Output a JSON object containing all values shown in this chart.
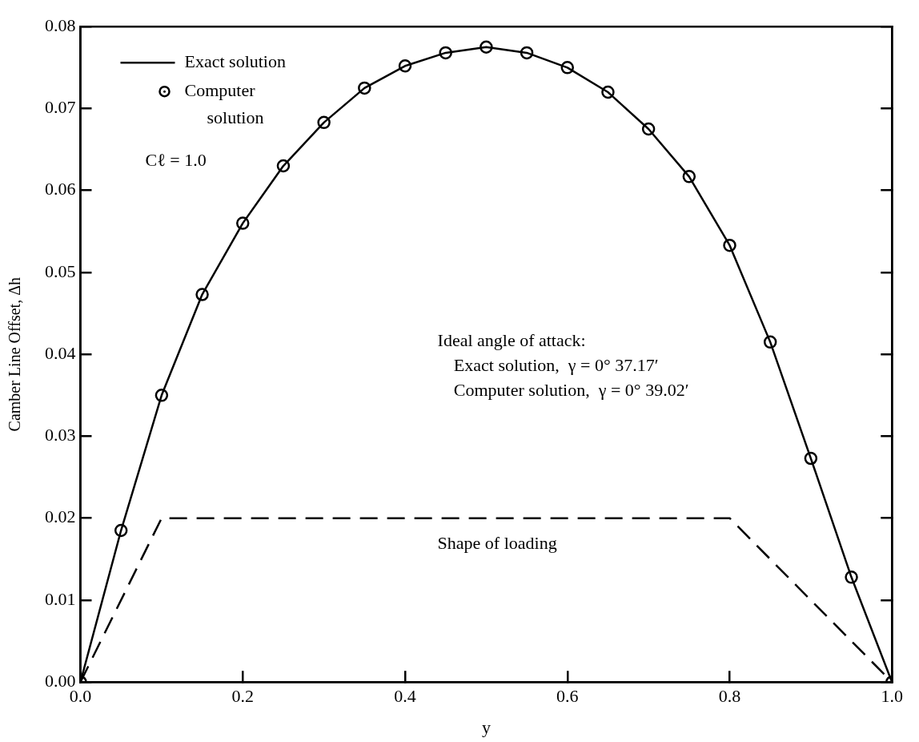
{
  "chart_data": {
    "type": "line",
    "xlabel": "y",
    "ylabel": "Camber Line Offset, Δh",
    "xlim": [
      0,
      1
    ],
    "ylim": [
      0,
      0.08
    ],
    "xticks": [
      {
        "value": 0,
        "label": "0.0"
      },
      {
        "value": 0.2,
        "label": "0.2"
      },
      {
        "value": 0.4,
        "label": "0.4"
      },
      {
        "value": 0.6,
        "label": "0.6"
      },
      {
        "value": 0.8,
        "label": "0.8"
      },
      {
        "value": 1,
        "label": "1.0"
      }
    ],
    "yticks": [
      {
        "value": 0,
        "label": "0.00"
      },
      {
        "value": 0.01,
        "label": "0.01"
      },
      {
        "value": 0.02,
        "label": "0.02"
      },
      {
        "value": 0.03,
        "label": "0.03"
      },
      {
        "value": 0.04,
        "label": "0.04"
      },
      {
        "value": 0.05,
        "label": "0.05"
      },
      {
        "value": 0.06,
        "label": "0.06"
      },
      {
        "value": 0.07,
        "label": "0.07"
      },
      {
        "value": 0.08,
        "label": "0.08"
      }
    ],
    "grid": false,
    "legend": "top left",
    "x": [
      0,
      0.05,
      0.1,
      0.15,
      0.2,
      0.25,
      0.3,
      0.35,
      0.4,
      0.45,
      0.5,
      0.55,
      0.6,
      0.65,
      0.7,
      0.75,
      0.8,
      0.85,
      0.9,
      0.95,
      1.0
    ],
    "series": [
      {
        "name": "Exact solution",
        "type": "line",
        "color": "#000000",
        "line_style": "solid",
        "marker": "none",
        "values": [
          0,
          0.0185,
          0.035,
          0.0473,
          0.056,
          0.063,
          0.0683,
          0.0725,
          0.0752,
          0.0768,
          0.0775,
          0.0768,
          0.075,
          0.072,
          0.0675,
          0.0617,
          0.0533,
          0.0415,
          0.0273,
          0.0128,
          0
        ]
      },
      {
        "name": "Computer solution",
        "type": "scatter",
        "color": "#000000",
        "marker": "circle",
        "values": [
          0,
          0.0185,
          0.035,
          0.0473,
          0.056,
          0.063,
          0.0683,
          0.0725,
          0.0752,
          0.0768,
          0.0775,
          0.0768,
          0.075,
          0.072,
          0.0675,
          0.0617,
          0.0533,
          0.0415,
          0.0273,
          0.0128,
          0
        ]
      },
      {
        "type": "line",
        "color": "#000000",
        "line_style": "dashed",
        "marker": "none",
        "x": [
          0,
          0.1,
          0.8,
          1.0
        ],
        "values": [
          0,
          0.02,
          0.02,
          0
        ]
      }
    ],
    "annotations": [
      "Cℓ = 1.0",
      "Ideal angle of attack:",
      "Exact solution,  γ = 0° 37.17′",
      "Computer solution,  γ = 0° 39.02′",
      "Shape of loading"
    ]
  }
}
